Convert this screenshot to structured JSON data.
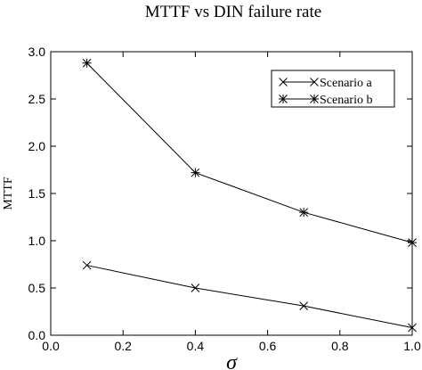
{
  "chart_data": {
    "type": "line",
    "title": "MTTF vs DIN failure rate",
    "xlabel": "σ",
    "ylabel": "MTTF",
    "xlim": [
      0.0,
      1.0
    ],
    "ylim": [
      0.0,
      3.0
    ],
    "xticks": [
      "0.0",
      "0.2",
      "0.4",
      "0.6",
      "0.8",
      "1.0"
    ],
    "yticks": [
      "0.0",
      "0.5",
      "1.0",
      "1.5",
      "2.0",
      "2.5",
      "3.0"
    ],
    "legend_position": "top-right",
    "grid": false,
    "series": [
      {
        "name": "Scenario a",
        "marker": "x",
        "x": [
          0.1,
          0.4,
          0.7,
          1.0
        ],
        "y": [
          0.74,
          0.5,
          0.31,
          0.08
        ]
      },
      {
        "name": "Scenario b",
        "marker": "star",
        "x": [
          0.1,
          0.4,
          0.7,
          1.0
        ],
        "y": [
          2.88,
          1.72,
          1.3,
          0.98
        ]
      }
    ]
  }
}
